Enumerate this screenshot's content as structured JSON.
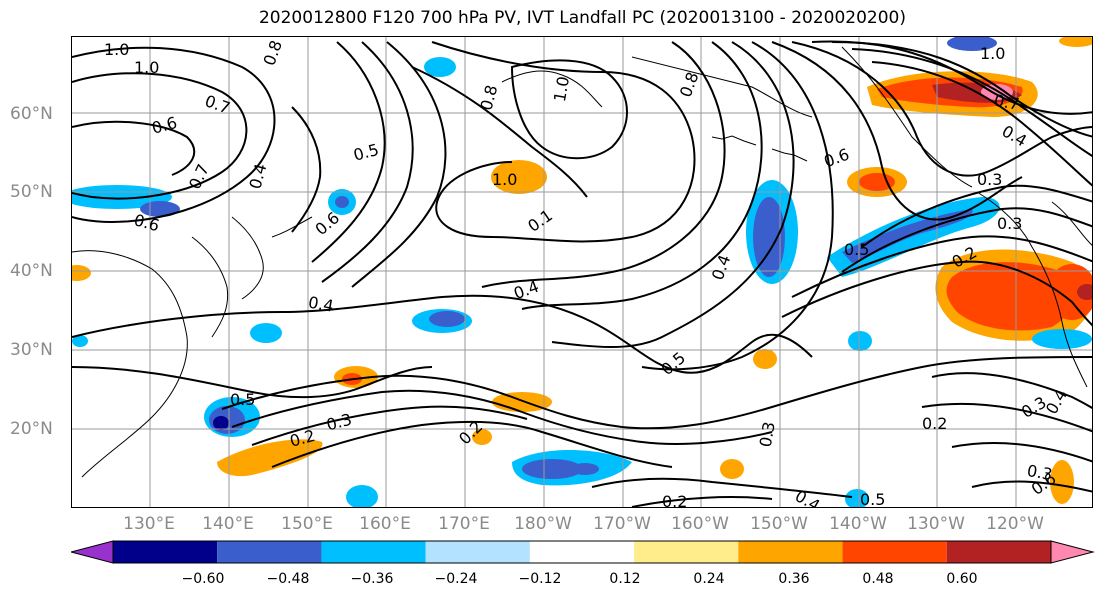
{
  "title": "2020012800 F120 700 hPa PV, IVT Landfall PC (2020013100 - 2020020200)",
  "lat_labels": [
    "60°N",
    "50°N",
    "40°N",
    "30°N",
    "20°N"
  ],
  "lon_labels": [
    "130°E",
    "140°E",
    "150°E",
    "160°E",
    "170°E",
    "180°W",
    "170°W",
    "160°W",
    "150°W",
    "140°W",
    "130°W",
    "120°W"
  ],
  "colorbar": {
    "ticks": [
      "−0.60",
      "−0.48",
      "−0.36",
      "−0.24",
      "−0.12",
      "0.12",
      "0.24",
      "0.36",
      "0.48",
      "0.60"
    ],
    "colors": [
      "#9932cc",
      "#00008b",
      "#3a5fcd",
      "#00bfff",
      "#b2e2ff",
      "#ffffff",
      "#ffec8b",
      "#ffa500",
      "#ff4500",
      "#b22222",
      "#ff88b0"
    ]
  },
  "contour_labels": [
    "1.0",
    "1.0",
    "0.8",
    "0.7",
    "0.6",
    "0.7",
    "0.4",
    "0.6",
    "0.5",
    "0.8",
    "1.0",
    "1.0",
    "0.1",
    "0.4",
    "0.4",
    "0.6",
    "0.6",
    "0.5",
    "0.8",
    "1.0",
    "0.7",
    "0.4",
    "0.3",
    "0.3",
    "0.2",
    "0.4",
    "0.5",
    "0.5",
    "0.2",
    "0.3",
    "0.2",
    "0.3",
    "0.4",
    "0.5",
    "0.2",
    "0.3",
    "0.2",
    "0.3",
    "0.4",
    "0.6"
  ]
}
